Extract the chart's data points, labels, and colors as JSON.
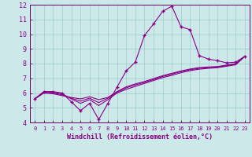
{
  "xlabel": "Windchill (Refroidissement éolien,°C)",
  "x_values": [
    0,
    1,
    2,
    3,
    4,
    5,
    6,
    7,
    8,
    9,
    10,
    11,
    12,
    13,
    14,
    15,
    16,
    17,
    18,
    19,
    20,
    21,
    22,
    23
  ],
  "line1_main": [
    5.6,
    6.1,
    6.1,
    6.0,
    5.4,
    4.8,
    5.3,
    4.2,
    5.3,
    6.4,
    7.5,
    8.1,
    9.9,
    10.7,
    11.55,
    11.9,
    10.5,
    10.3,
    8.55,
    8.3,
    8.2,
    8.05,
    8.1,
    8.5
  ],
  "line2": [
    5.6,
    6.1,
    6.05,
    5.95,
    5.6,
    5.3,
    5.55,
    5.15,
    5.55,
    6.0,
    6.25,
    6.45,
    6.65,
    6.85,
    7.05,
    7.2,
    7.38,
    7.52,
    7.62,
    7.68,
    7.72,
    7.82,
    7.92,
    8.5
  ],
  "line3": [
    5.6,
    6.05,
    6.0,
    5.88,
    5.65,
    5.45,
    5.65,
    5.35,
    5.65,
    6.05,
    6.35,
    6.55,
    6.72,
    6.92,
    7.12,
    7.28,
    7.45,
    7.58,
    7.68,
    7.72,
    7.76,
    7.86,
    7.96,
    8.5
  ],
  "line4": [
    5.6,
    6.0,
    5.95,
    5.82,
    5.7,
    5.6,
    5.75,
    5.55,
    5.7,
    6.1,
    6.42,
    6.62,
    6.78,
    6.98,
    7.18,
    7.34,
    7.5,
    7.63,
    7.73,
    7.77,
    7.8,
    7.9,
    8.0,
    8.5
  ],
  "line_color": "#880088",
  "bg_color": "#cce8e8",
  "grid_color": "#99cccc",
  "axis_color": "#660066",
  "tick_label_color": "#880088",
  "ylim": [
    4,
    12
  ],
  "xlim_min": -0.5,
  "xlim_max": 23.5,
  "yticks": [
    4,
    5,
    6,
    7,
    8,
    9,
    10,
    11,
    12
  ],
  "xticks": [
    0,
    1,
    2,
    3,
    4,
    5,
    6,
    7,
    8,
    9,
    10,
    11,
    12,
    13,
    14,
    15,
    16,
    17,
    18,
    19,
    20,
    21,
    22,
    23
  ],
  "xlabel_fontsize": 6,
  "tick_fontsize_x": 5,
  "tick_fontsize_y": 6
}
